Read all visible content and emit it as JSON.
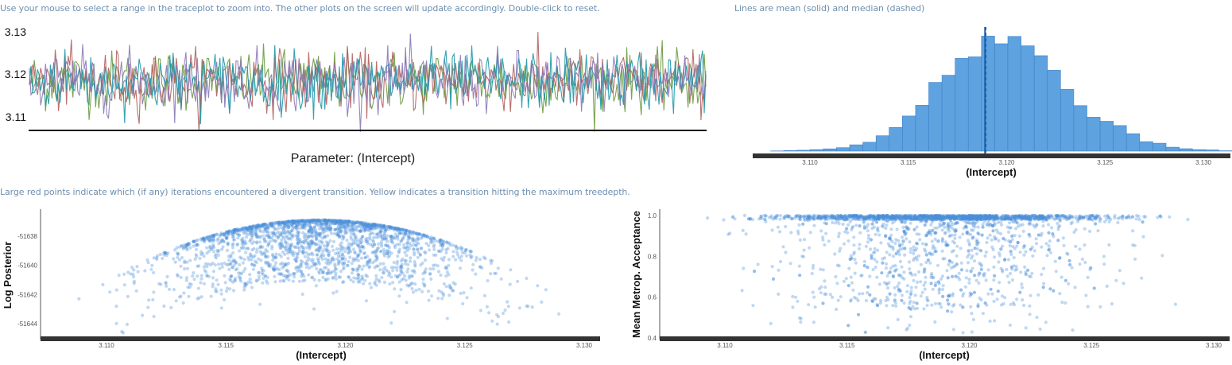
{
  "notes": {
    "trace": "Use your mouse to select a range in the traceplot to zoom into. The other plots on the screen will update accordingly. Double-click to reset.",
    "hist": "Lines are mean (solid) and median (dashed)",
    "scatter": "Large red points indicate which (if any) iterations encountered a divergent transition. Yellow indicates a transition hitting the maximum treedepth."
  },
  "colors": {
    "chains": [
      "#6a9a3f",
      "#b1605f",
      "#8b79b8",
      "#1e98a8"
    ],
    "accent": "#4a90d9",
    "bar_fill": "#5fa2e0",
    "bar_stroke": "#3c7fc6",
    "mean_line": "#1d5fa8",
    "axis": "#333333",
    "note_text": "#6d8fb0"
  },
  "chart_data": [
    {
      "id": "traceplot",
      "type": "line",
      "title": "Parameter: (Intercept)",
      "xlabel": "",
      "ylabel": "",
      "ylim": [
        3.1065,
        3.1335
      ],
      "yticks": [
        "3.13",
        "3.12",
        "3.11"
      ],
      "n_iterations": 1000,
      "series": [
        {
          "color": "#6a9a3f",
          "mean": 3.1185,
          "sd": 0.0035
        },
        {
          "color": "#b1605f",
          "mean": 3.1185,
          "sd": 0.0035
        },
        {
          "color": "#8b79b8",
          "mean": 3.1185,
          "sd": 0.0035
        },
        {
          "color": "#1e98a8",
          "mean": 3.1185,
          "sd": 0.0035
        }
      ]
    },
    {
      "id": "histogram",
      "type": "bar",
      "xlabel": "(Intercept)",
      "xlim": [
        3.1075,
        3.131
      ],
      "xticks": [
        "3.110",
        "3.115",
        "3.120",
        "3.125",
        "3.130"
      ],
      "bin_start": 3.108,
      "bin_width": 0.00067,
      "counts": [
        1,
        3,
        5,
        9,
        13,
        20,
        37,
        52,
        90,
        139,
        206,
        269,
        403,
        445,
        544,
        553,
        675,
        630,
        673,
        618,
        560,
        474,
        362,
        267,
        199,
        175,
        150,
        102,
        55,
        46,
        23,
        14,
        9,
        7,
        2
      ],
      "mean": 3.1189,
      "median": 3.1189,
      "ylim": [
        0,
        700
      ]
    },
    {
      "id": "log-posterior-scatter",
      "type": "scatter",
      "xlabel": "(Intercept)",
      "ylabel": "Log Posterior",
      "xlim": [
        3.1075,
        3.131
      ],
      "xticks": [
        "3.110",
        "3.115",
        "3.120",
        "3.125",
        "3.130"
      ],
      "ylim": [
        -51645.2,
        -51636.7
      ],
      "yticks": [
        "-51638",
        "-51640",
        "-51642",
        "-51644"
      ],
      "peak": {
        "x": 3.1189,
        "y": -51636.9
      },
      "n_points": 4000,
      "x_mean": 3.1189,
      "x_sd": 0.0032
    },
    {
      "id": "acceptance-scatter",
      "type": "scatter",
      "xlabel": "(Intercept)",
      "ylabel": "Mean Metrop. Acceptance",
      "xlim": [
        3.1075,
        3.131
      ],
      "xticks": [
        "3.110",
        "3.115",
        "3.120",
        "3.125",
        "3.130"
      ],
      "ylim": [
        0.4,
        1.0
      ],
      "yticks": [
        "1.0",
        "0.8",
        "0.6",
        "0.4"
      ],
      "n_points": 4000,
      "x_mean": 3.1189,
      "x_sd": 0.0032
    }
  ]
}
